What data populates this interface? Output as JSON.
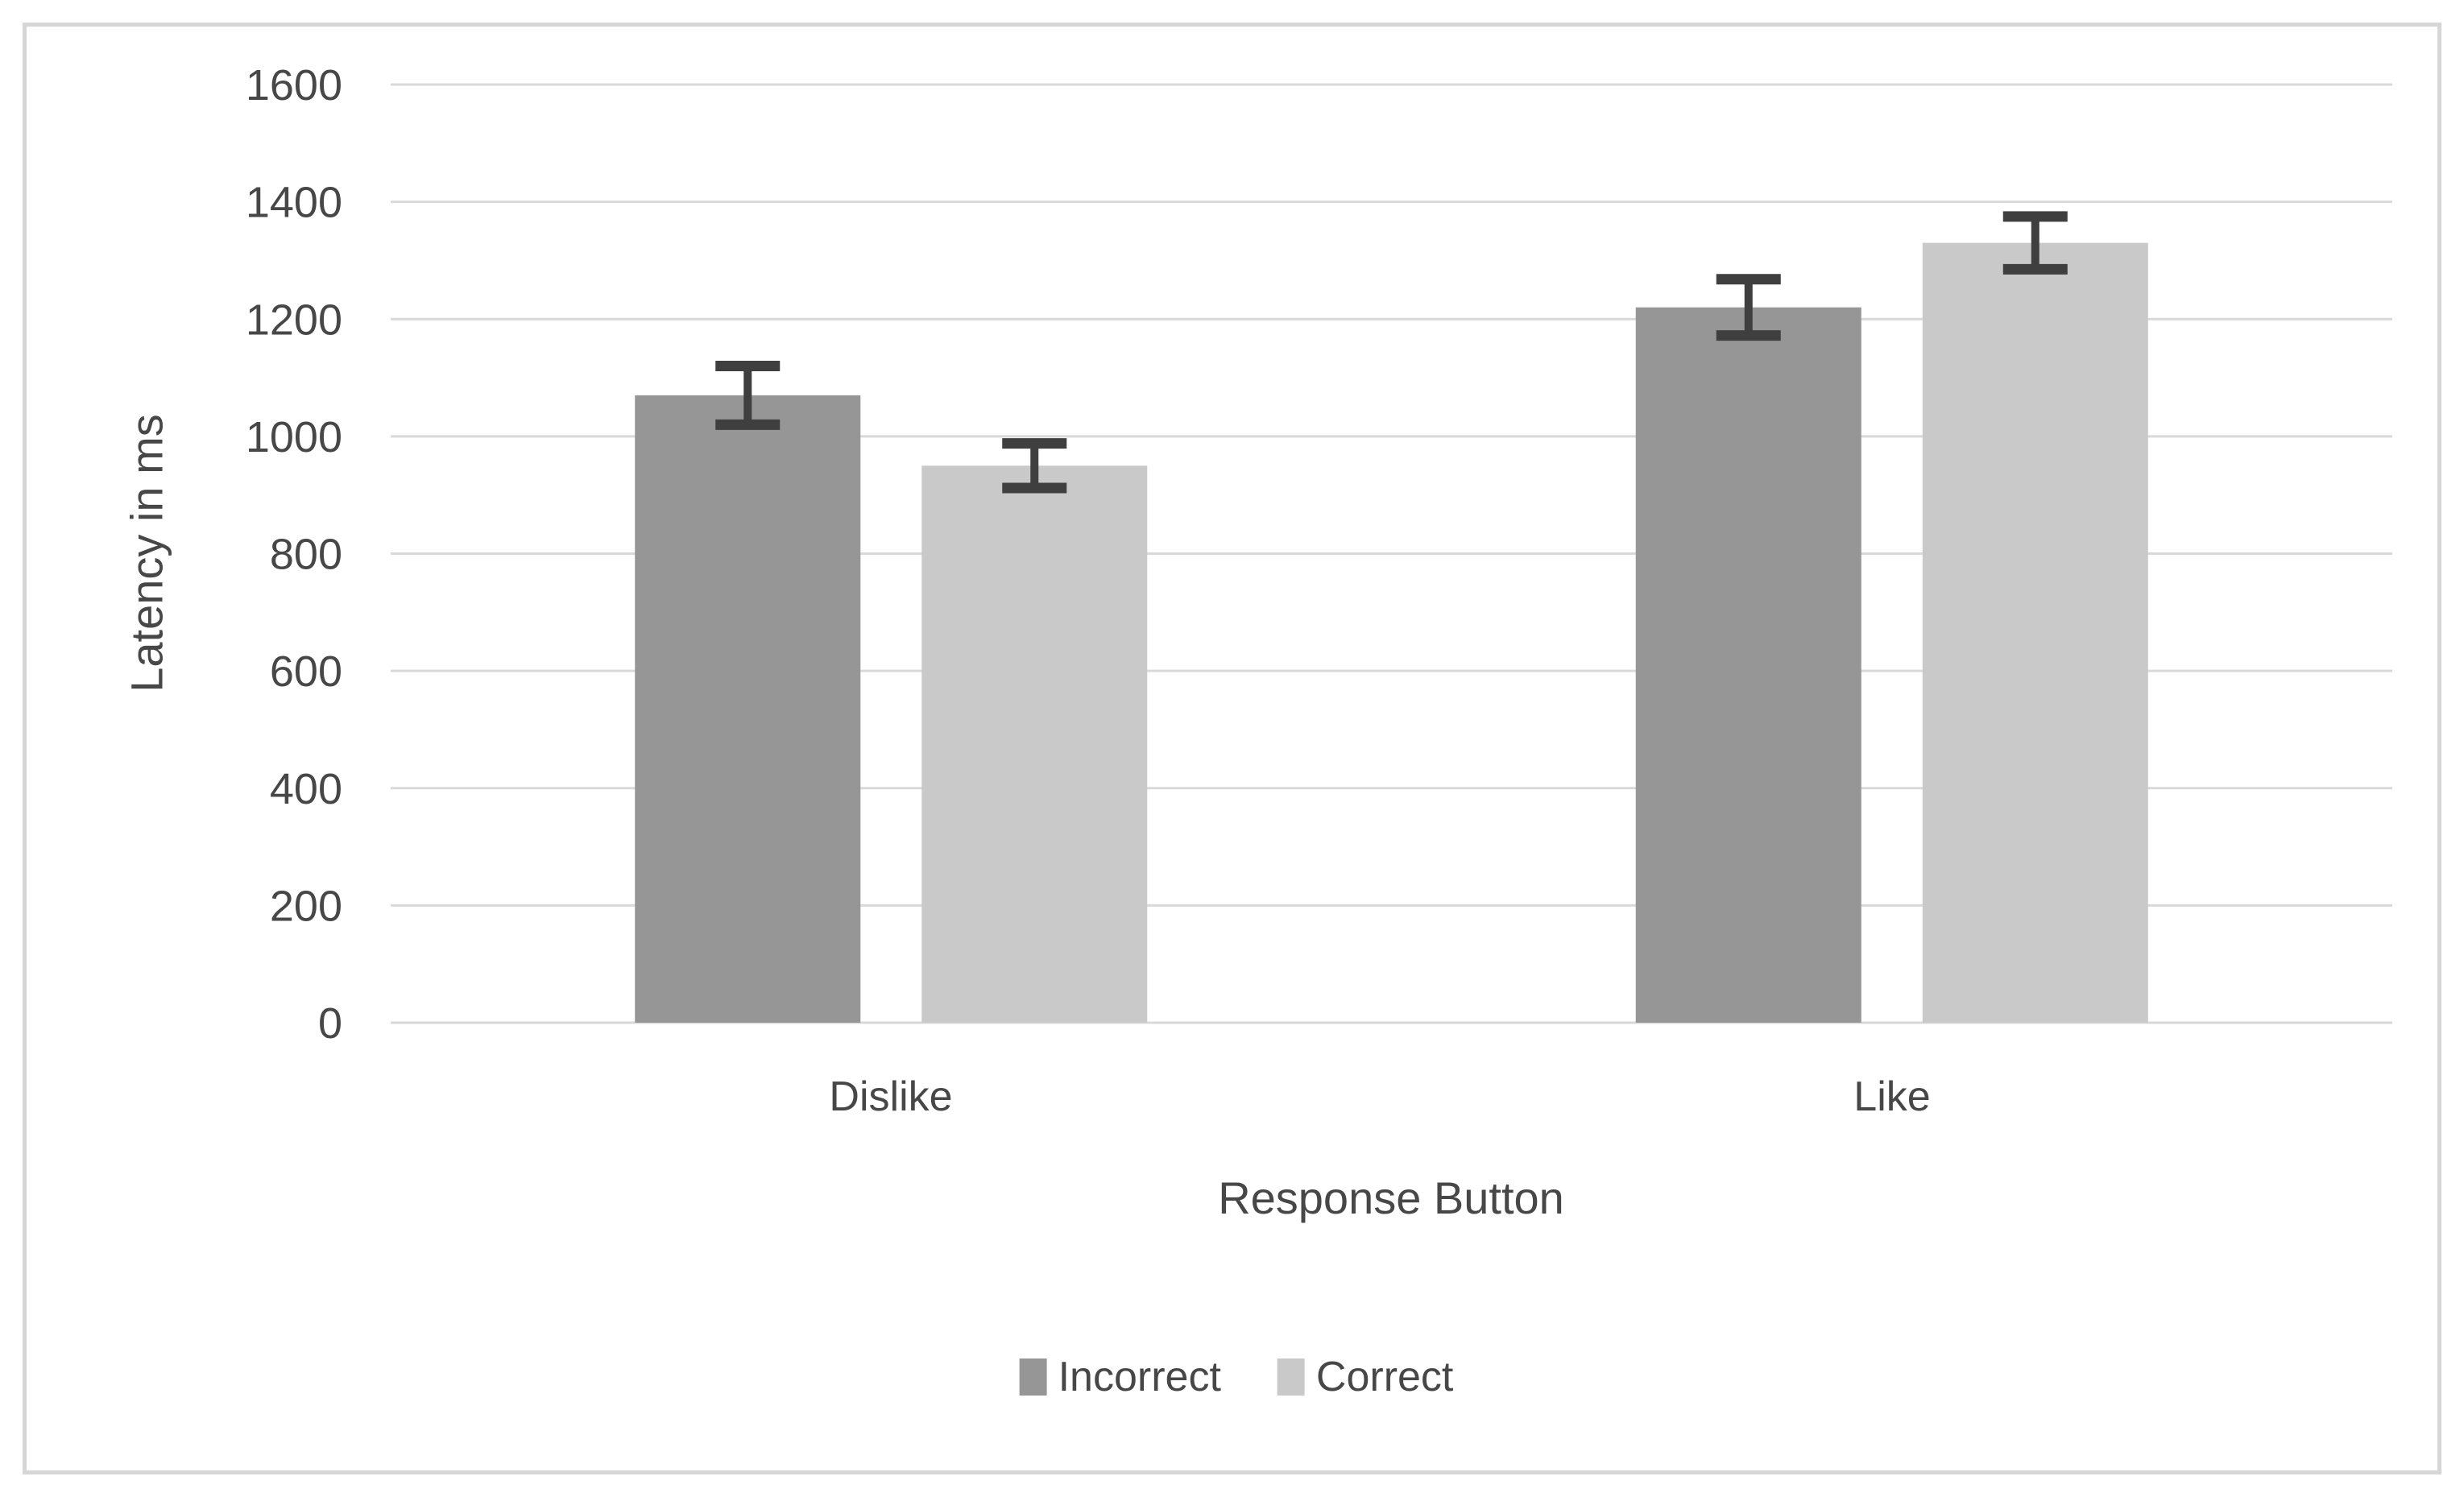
{
  "chart_data": {
    "type": "bar",
    "title": "",
    "xlabel": "Response Button",
    "ylabel": "Latency in ms",
    "categories": [
      "Dislike",
      "Like"
    ],
    "series": [
      {
        "name": "Incorrect",
        "color": "#969696",
        "values": [
          1070,
          1220
        ],
        "error_bars": [
          50,
          48
        ]
      },
      {
        "name": "Correct",
        "color": "#C9C9C9",
        "values": [
          950,
          1330
        ],
        "error_bars": [
          38,
          45
        ]
      }
    ],
    "ylim": [
      0,
      1600
    ],
    "ytick_step": 200,
    "ytick_labels": [
      "0",
      "200",
      "400",
      "600",
      "800",
      "1000",
      "1200",
      "1400",
      "1600"
    ],
    "grid": "horizontal",
    "legend_position": "bottom",
    "colors": {
      "gridline": "#D9D9D9",
      "error_bar": "#3F3F3F",
      "axis_text": "#474747",
      "border": "#D6D6D6",
      "background": "#FFFFFF"
    }
  }
}
